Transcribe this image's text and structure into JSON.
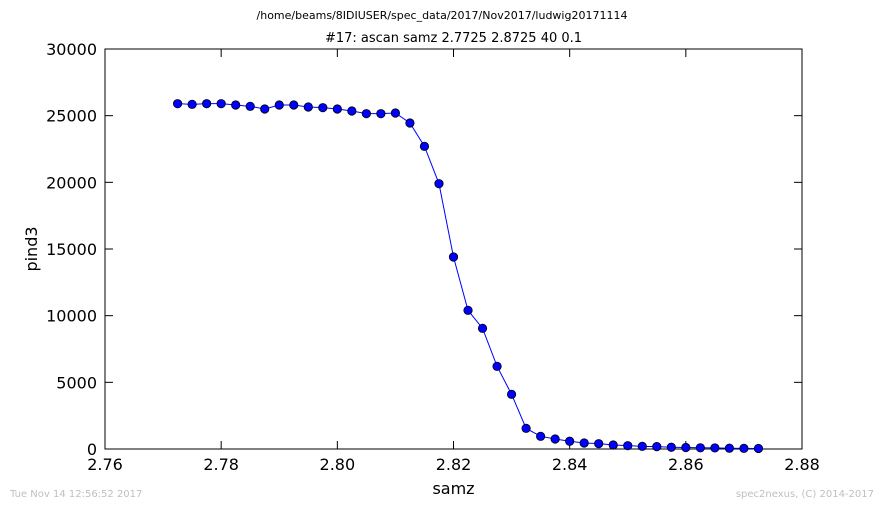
{
  "figure": {
    "suptitle": "/home/beams/8IDIUSER/spec_data/2017/Nov2017/ludwig20171114",
    "footer_left": "Tue Nov 14 12:56:52 2017",
    "footer_right": "spec2nexus, (C) 2014-2017"
  },
  "chart_data": {
    "type": "line",
    "title": "#17: ascan  samz 2.7725 2.8725  40 0.1",
    "xlabel": "samz",
    "ylabel": "pind3",
    "xlim": [
      2.76,
      2.88
    ],
    "ylim": [
      0,
      30000
    ],
    "xticks": [
      2.76,
      2.78,
      2.8,
      2.82,
      2.84,
      2.86,
      2.88
    ],
    "xtick_labels": [
      "2.76",
      "2.78",
      "2.80",
      "2.82",
      "2.84",
      "2.86",
      "2.88"
    ],
    "yticks": [
      0,
      5000,
      10000,
      15000,
      20000,
      25000,
      30000
    ],
    "ytick_labels": [
      "0",
      "5000",
      "10000",
      "15000",
      "20000",
      "25000",
      "30000"
    ],
    "grid": false,
    "color": "#0000ff",
    "marker": "circle",
    "series": [
      {
        "x": [
          2.7725,
          2.775,
          2.7775,
          2.78,
          2.7825,
          2.785,
          2.7875,
          2.79,
          2.7925,
          2.795,
          2.7975,
          2.8,
          2.8025,
          2.805,
          2.8075,
          2.81,
          2.8125,
          2.815,
          2.8175,
          2.82,
          2.8225,
          2.825,
          2.8275,
          2.83,
          2.8325,
          2.835,
          2.8375,
          2.84,
          2.8425,
          2.845,
          2.8475,
          2.85,
          2.8525,
          2.855,
          2.8575,
          2.86,
          2.8625,
          2.865,
          2.8675,
          2.87,
          2.8725
        ],
        "y": [
          25900,
          25850,
          25900,
          25900,
          25800,
          25700,
          25500,
          25800,
          25800,
          25650,
          25600,
          25500,
          25350,
          25150,
          25150,
          25200,
          24450,
          22700,
          19900,
          14400,
          10400,
          9050,
          6200,
          4100,
          1550,
          950,
          750,
          580,
          450,
          400,
          300,
          250,
          200,
          180,
          130,
          110,
          90,
          80,
          60,
          50,
          40
        ]
      }
    ]
  }
}
